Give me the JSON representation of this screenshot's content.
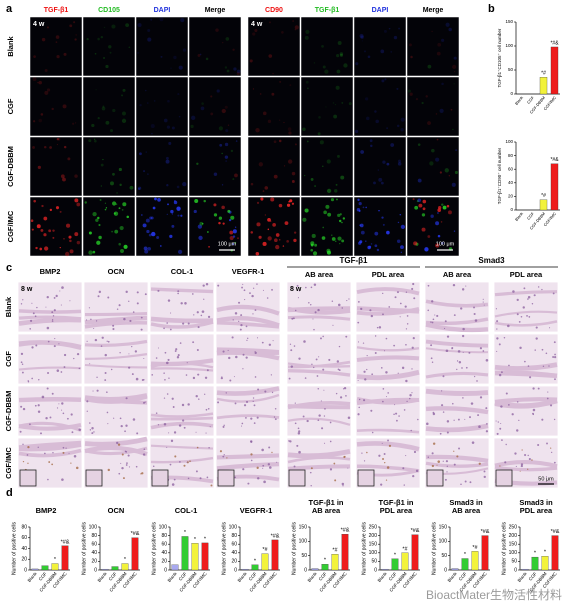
{
  "panel_labels": [
    "a",
    "b",
    "c",
    "d"
  ],
  "panel_a": {
    "time": "4 w",
    "scale_bar": "100 μm",
    "rows": [
      "Blank",
      "CGF",
      "CGF-DBBM",
      "CGF/IMC"
    ],
    "columns": [
      "TGF-β1",
      "CD105",
      "DAPI",
      "Merge",
      "CD90",
      "TGF-β1",
      "DAPI",
      "Merge"
    ]
  },
  "panel_c": {
    "time": "8 w",
    "scale_bar": "50 μm",
    "rows": [
      "Blank",
      "CGF",
      "CGF-DBBM",
      "CGF/IMC"
    ],
    "columns": [
      "BMP2",
      "OCN",
      "COL-1",
      "VEGFR-1"
    ],
    "groups": [
      {
        "name": "TGF-β1",
        "columns": [
          "AB area",
          "PDL area"
        ]
      },
      {
        "name": "Smad3",
        "columns": [
          "AB area",
          "PDL area"
        ]
      }
    ]
  },
  "chart_data": [
    {
      "type": "bar",
      "title": [],
      "ylabel": "TGF-β1⁺CD105⁺ cell number",
      "categories": [
        "Blank",
        "CGF",
        "CGF-DBBM",
        "CGF/IMC"
      ],
      "values": [
        0,
        0,
        35,
        98
      ],
      "colors": [
        "#a9a9ef",
        "#33cc33",
        "#f2f23a",
        "#ee1c1c"
      ],
      "significance": [
        null,
        null,
        "*#",
        "*#&"
      ],
      "ylim": [
        0,
        150
      ],
      "yticks": [
        0,
        50,
        100,
        150
      ]
    },
    {
      "type": "bar",
      "title": [],
      "ylabel": "TGF-β1⁺CD90⁺ cell number",
      "categories": [
        "Blank",
        "CGF",
        "CGF-DBBM",
        "CGF/IMC"
      ],
      "values": [
        0,
        0,
        15,
        68
      ],
      "colors": [
        "#a9a9ef",
        "#33cc33",
        "#f2f23a",
        "#ee1c1c"
      ],
      "significance": [
        null,
        null,
        "*#",
        "*#&"
      ],
      "ylim": [
        0,
        100
      ],
      "yticks": [
        0,
        20,
        40,
        60,
        80,
        100
      ]
    },
    {
      "type": "bar",
      "title": [
        "BMP2"
      ],
      "ylabel": "Number of positive cells",
      "categories": [
        "Blank",
        "CGF",
        "CGF-DBBM",
        "CGF/IMC"
      ],
      "values": [
        2,
        8,
        12,
        45
      ],
      "colors": [
        "#a9a9ef",
        "#33cc33",
        "#f2f23a",
        "#ee1c1c"
      ],
      "significance": [
        null,
        null,
        "*",
        "*#&"
      ],
      "ylim": [
        0,
        80
      ],
      "yticks": [
        0,
        20,
        40,
        60,
        80
      ]
    },
    {
      "type": "bar",
      "title": [
        "OCN"
      ],
      "ylabel": "Number of positive cells",
      "categories": [
        "Blank",
        "CGF",
        "CGF-DBBM",
        "CGF/IMC"
      ],
      "values": [
        2,
        8,
        15,
        75
      ],
      "colors": [
        "#a9a9ef",
        "#33cc33",
        "#f2f23a",
        "#ee1c1c"
      ],
      "significance": [
        null,
        null,
        "*",
        "*#&"
      ],
      "ylim": [
        0,
        100
      ],
      "yticks": [
        0,
        20,
        40,
        60,
        80,
        100
      ]
    },
    {
      "type": "bar",
      "title": [
        "COL-1"
      ],
      "ylabel": "Number of positive cells",
      "categories": [
        "Blank",
        "CGF",
        "CGF-DBBM",
        "CGF/IMC"
      ],
      "values": [
        12,
        78,
        62,
        63
      ],
      "colors": [
        "#a9a9ef",
        "#33cc33",
        "#f2f23a",
        "#ee1c1c"
      ],
      "significance": [
        null,
        "*",
        "*",
        "*"
      ],
      "ylim": [
        0,
        100
      ],
      "yticks": [
        0,
        20,
        40,
        60,
        80,
        100
      ]
    },
    {
      "type": "bar",
      "title": [
        "VEGFR-1"
      ],
      "ylabel": "Number of positive cells",
      "categories": [
        "Blank",
        "CGF",
        "CGF-DBBM",
        "CGF/IMC"
      ],
      "values": [
        2,
        12,
        38,
        70
      ],
      "colors": [
        "#a9a9ef",
        "#33cc33",
        "#f2f23a",
        "#ee1c1c"
      ],
      "significance": [
        null,
        "*",
        "*#",
        "*#&"
      ],
      "ylim": [
        0,
        100
      ],
      "yticks": [
        0,
        20,
        40,
        60,
        80,
        100
      ]
    },
    {
      "type": "bar",
      "title": [
        "TGF-β1 in",
        "AB area"
      ],
      "ylabel": "Number of positive cells",
      "categories": [
        "Blank",
        "CGF",
        "CGF-DBBM",
        "CGF/IMC"
      ],
      "values": [
        5,
        20,
        55,
        125
      ],
      "colors": [
        "#a9a9ef",
        "#33cc33",
        "#f2f23a",
        "#ee1c1c"
      ],
      "significance": [
        null,
        "*",
        "*#",
        "*#&"
      ],
      "ylim": [
        0,
        150
      ],
      "yticks": [
        0,
        50,
        100,
        150
      ]
    },
    {
      "type": "bar",
      "title": [
        "TGF-β1 in",
        "PDL area"
      ],
      "ylabel": "Number of positive cells",
      "categories": [
        "Blank",
        "CGF",
        "CGF-DBBM",
        "CGF/IMC"
      ],
      "values": [
        5,
        65,
        100,
        205
      ],
      "colors": [
        "#a9a9ef",
        "#33cc33",
        "#f2f23a",
        "#ee1c1c"
      ],
      "significance": [
        null,
        "*",
        "*#",
        "*#&"
      ],
      "ylim": [
        0,
        250
      ],
      "yticks": [
        0,
        50,
        100,
        150,
        200,
        250
      ]
    },
    {
      "type": "bar",
      "title": [
        "Smad3 in",
        "AB area"
      ],
      "ylabel": "Number of positive cells",
      "categories": [
        "Blank",
        "CGF",
        "CGF-DBBM",
        "CGF/IMC"
      ],
      "values": [
        5,
        40,
        65,
        120
      ],
      "colors": [
        "#a9a9ef",
        "#33cc33",
        "#f2f23a",
        "#ee1c1c"
      ],
      "significance": [
        null,
        "*",
        "*#",
        "*#&"
      ],
      "ylim": [
        0,
        150
      ],
      "yticks": [
        0,
        50,
        100,
        150
      ]
    },
    {
      "type": "bar",
      "title": [
        "Smad3 in",
        "PDL area"
      ],
      "ylabel": "Number of positive cells",
      "categories": [
        "Blank",
        "CGF",
        "CGF-DBBM",
        "CGF/IMC"
      ],
      "values": [
        5,
        75,
        80,
        200
      ],
      "colors": [
        "#a9a9ef",
        "#33cc33",
        "#f2f23a",
        "#ee1c1c"
      ],
      "significance": [
        null,
        "*",
        "*",
        "*#&"
      ],
      "ylim": [
        0,
        250
      ],
      "yticks": [
        0,
        50,
        100,
        150,
        200,
        250
      ]
    }
  ],
  "watermark": "BioactMater生物活性材料"
}
